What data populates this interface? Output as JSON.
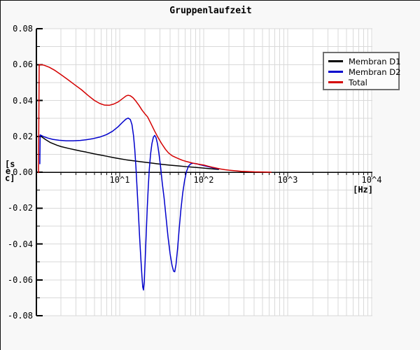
{
  "window": {
    "background": "#f8f8f8",
    "plot_background": "#ffffff",
    "grid_color": "#d9d9d9"
  },
  "chart_data": {
    "type": "line",
    "title": "Gruppenlaufzeit",
    "xlabel": "[Hz]",
    "ylabel": "[sec]",
    "x_scale": "log",
    "xlim": [
      1,
      10000
    ],
    "ylim": [
      -0.08,
      0.08
    ],
    "y_minor_step": 0.01,
    "grid": true,
    "legend_position": "top-right",
    "x_ticks": [
      {
        "label": "10^1",
        "value": 10
      },
      {
        "label": "10^2",
        "value": 100
      },
      {
        "label": "10^3",
        "value": 1000
      },
      {
        "label": "10^4",
        "value": 10000
      }
    ],
    "y_ticks": [
      {
        "label": "0.08",
        "value": 0.08
      },
      {
        "label": "0.06",
        "value": 0.06
      },
      {
        "label": "0.04",
        "value": 0.04
      },
      {
        "label": "0.02",
        "value": 0.02
      },
      {
        "label": "0.00",
        "value": 0.0
      },
      {
        "label": "-0.02",
        "value": -0.02
      },
      {
        "label": "-0.04",
        "value": -0.04
      },
      {
        "label": "-0.06",
        "value": -0.06
      },
      {
        "label": "-0.08",
        "value": -0.08
      }
    ],
    "series": [
      {
        "name": "Membran D1",
        "color": "#000000",
        "points": [
          [
            1.12,
            0.0205
          ],
          [
            1.3,
            0.0183
          ],
          [
            1.5,
            0.0165
          ],
          [
            1.8,
            0.015
          ],
          [
            2.0,
            0.0143
          ],
          [
            2.5,
            0.0132
          ],
          [
            3.0,
            0.0124
          ],
          [
            3.5,
            0.0117
          ],
          [
            4.0,
            0.0112
          ],
          [
            5.0,
            0.0102
          ],
          [
            6.0,
            0.0095
          ],
          [
            7.0,
            0.0089
          ],
          [
            8.5,
            0.0081
          ],
          [
            10,
            0.0075
          ],
          [
            12,
            0.0069
          ],
          [
            15,
            0.0063
          ],
          [
            18,
            0.0058
          ],
          [
            22,
            0.0053
          ],
          [
            27,
            0.0048
          ],
          [
            33,
            0.0043
          ],
          [
            40,
            0.0039
          ],
          [
            50,
            0.0035
          ],
          [
            62,
            0.0031
          ],
          [
            75,
            0.0028
          ],
          [
            90,
            0.0025
          ],
          [
            110,
            0.0021
          ],
          [
            130,
            0.0018
          ],
          [
            152,
            0.0015
          ]
        ]
      },
      {
        "name": "Membran D2",
        "color": "#0000cc",
        "points": [
          [
            1.12,
            0.0045
          ],
          [
            1.13,
            0.0208
          ],
          [
            1.25,
            0.0198
          ],
          [
            1.4,
            0.019
          ],
          [
            1.6,
            0.0183
          ],
          [
            1.9,
            0.0178
          ],
          [
            2.3,
            0.0175
          ],
          [
            2.8,
            0.0175
          ],
          [
            3.4,
            0.0177
          ],
          [
            4.0,
            0.0181
          ],
          [
            4.8,
            0.0187
          ],
          [
            5.8,
            0.0196
          ],
          [
            7.0,
            0.021
          ],
          [
            8.2,
            0.0228
          ],
          [
            9.5,
            0.0252
          ],
          [
            10.8,
            0.0278
          ],
          [
            11.8,
            0.0295
          ],
          [
            12.6,
            0.0302
          ],
          [
            13.4,
            0.0293
          ],
          [
            14.0,
            0.0265
          ],
          [
            14.6,
            0.0205
          ],
          [
            15.1,
            0.013
          ],
          [
            15.6,
            0.003
          ],
          [
            16.1,
            -0.009
          ],
          [
            16.7,
            -0.023
          ],
          [
            17.3,
            -0.037
          ],
          [
            17.9,
            -0.049
          ],
          [
            18.4,
            -0.058
          ],
          [
            18.8,
            -0.064
          ],
          [
            19.2,
            -0.0657
          ],
          [
            19.6,
            -0.061
          ],
          [
            20.1,
            -0.049
          ],
          [
            20.7,
            -0.034
          ],
          [
            21.3,
            -0.0195
          ],
          [
            21.9,
            -0.008
          ],
          [
            22.5,
            0.0015
          ],
          [
            23.3,
            0.01
          ],
          [
            24.2,
            0.016
          ],
          [
            25.2,
            0.0196
          ],
          [
            26.1,
            0.0205
          ],
          [
            27.1,
            0.0192
          ],
          [
            28.2,
            0.0158
          ],
          [
            29.4,
            0.01
          ],
          [
            30.7,
            0.0028
          ],
          [
            32.1,
            -0.006
          ],
          [
            33.8,
            -0.0145
          ],
          [
            35.6,
            -0.025
          ],
          [
            37.6,
            -0.036
          ],
          [
            39.8,
            -0.0455
          ],
          [
            42.0,
            -0.052
          ],
          [
            43.8,
            -0.0552
          ],
          [
            45.2,
            -0.0555
          ],
          [
            46.8,
            -0.0515
          ],
          [
            48.8,
            -0.043
          ],
          [
            51.0,
            -0.032
          ],
          [
            53.5,
            -0.021
          ],
          [
            56.3,
            -0.0115
          ],
          [
            59.3,
            -0.0045
          ],
          [
            62.5,
            0.0005
          ],
          [
            66.0,
            0.0034
          ],
          [
            70.0,
            0.0047
          ],
          [
            75.0,
            0.005
          ],
          [
            82.0,
            0.0047
          ],
          [
            90.0,
            0.0042
          ],
          [
            100,
            0.0037
          ],
          [
            112,
            0.0031
          ],
          [
            126,
            0.0026
          ],
          [
            140,
            0.0021
          ],
          [
            152,
            0.0018
          ]
        ]
      },
      {
        "name": "Total",
        "color": "#d40000",
        "points": [
          [
            1.08,
            -0.0005
          ],
          [
            1.1,
            0.06
          ],
          [
            1.25,
            0.0597
          ],
          [
            1.45,
            0.0585
          ],
          [
            1.7,
            0.0567
          ],
          [
            2.0,
            0.0544
          ],
          [
            2.4,
            0.0517
          ],
          [
            2.9,
            0.0488
          ],
          [
            3.5,
            0.046
          ],
          [
            4.2,
            0.0428
          ],
          [
            5.0,
            0.04
          ],
          [
            5.8,
            0.0383
          ],
          [
            6.6,
            0.0374
          ],
          [
            7.5,
            0.0373
          ],
          [
            8.5,
            0.038
          ],
          [
            9.6,
            0.0392
          ],
          [
            10.8,
            0.041
          ],
          [
            11.9,
            0.0425
          ],
          [
            12.6,
            0.0429
          ],
          [
            13.4,
            0.0426
          ],
          [
            14.4,
            0.0415
          ],
          [
            15.6,
            0.0396
          ],
          [
            17.0,
            0.0372
          ],
          [
            18.5,
            0.0345
          ],
          [
            20.0,
            0.0325
          ],
          [
            21.5,
            0.0308
          ],
          [
            23.5,
            0.0272
          ],
          [
            26.0,
            0.023
          ],
          [
            28.7,
            0.0192
          ],
          [
            31.6,
            0.0159
          ],
          [
            35.0,
            0.0128
          ],
          [
            38.0,
            0.0108
          ],
          [
            42.0,
            0.0092
          ],
          [
            46.0,
            0.0083
          ],
          [
            51.0,
            0.0074
          ],
          [
            56.0,
            0.0066
          ],
          [
            62.0,
            0.006
          ],
          [
            68.0,
            0.0055
          ],
          [
            75.0,
            0.005
          ],
          [
            82.0,
            0.0047
          ],
          [
            91.0,
            0.0043
          ],
          [
            100,
            0.004
          ],
          [
            112,
            0.0034
          ],
          [
            126,
            0.0028
          ],
          [
            141,
            0.0023
          ],
          [
            158,
            0.0018
          ],
          [
            178,
            0.0014
          ],
          [
            200,
            0.0011
          ],
          [
            240,
            0.0008
          ],
          [
            280,
            0.0005
          ],
          [
            320,
            0.0004
          ],
          [
            400,
            0.0002
          ],
          [
            500,
            0.0001
          ],
          [
            640,
            0.0
          ]
        ]
      }
    ]
  }
}
